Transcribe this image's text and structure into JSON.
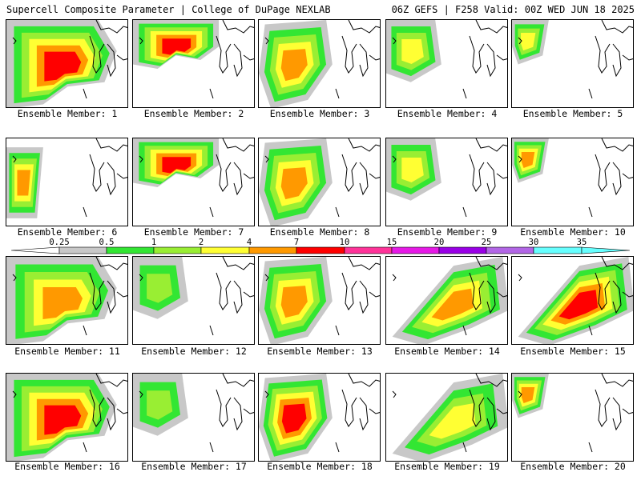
{
  "header": {
    "title_left": "Supercell Composite Parameter | College of DuPage NEXLAB",
    "title_right": "06Z GEFS | F258 Valid: 00Z WED JUN 18 2025"
  },
  "legend": {
    "labels": [
      "0.25",
      "0.5",
      "1",
      "2",
      "4",
      "7",
      "10",
      "15",
      "20",
      "25",
      "30",
      "35"
    ],
    "colors": [
      "#ffffff",
      "#c8c8c8",
      "#33e633",
      "#99ee33",
      "#ffff33",
      "#ff9900",
      "#ff0000",
      "#ff3399",
      "#e619e6",
      "#9900e6",
      "#b266e6",
      "#66ffff"
    ]
  },
  "panels": [
    {
      "label": "Ensemble Member: 1"
    },
    {
      "label": "Ensemble Member: 2"
    },
    {
      "label": "Ensemble Member: 3"
    },
    {
      "label": "Ensemble Member: 4"
    },
    {
      "label": "Ensemble Member: 5"
    },
    {
      "label": "Ensemble Member: 6"
    },
    {
      "label": "Ensemble Member: 7"
    },
    {
      "label": "Ensemble Member: 8"
    },
    {
      "label": "Ensemble Member: 9"
    },
    {
      "label": "Ensemble Member: 10"
    },
    {
      "label": "Ensemble Member: 11"
    },
    {
      "label": "Ensemble Member: 12"
    },
    {
      "label": "Ensemble Member: 13"
    },
    {
      "label": "Ensemble Member: 14"
    },
    {
      "label": "Ensemble Member: 15"
    },
    {
      "label": "Ensemble Member: 16"
    },
    {
      "label": "Ensemble Member: 17"
    },
    {
      "label": "Ensemble Member: 18"
    },
    {
      "label": "Ensemble Member: 19"
    },
    {
      "label": "Ensemble Member: 20"
    }
  ]
}
